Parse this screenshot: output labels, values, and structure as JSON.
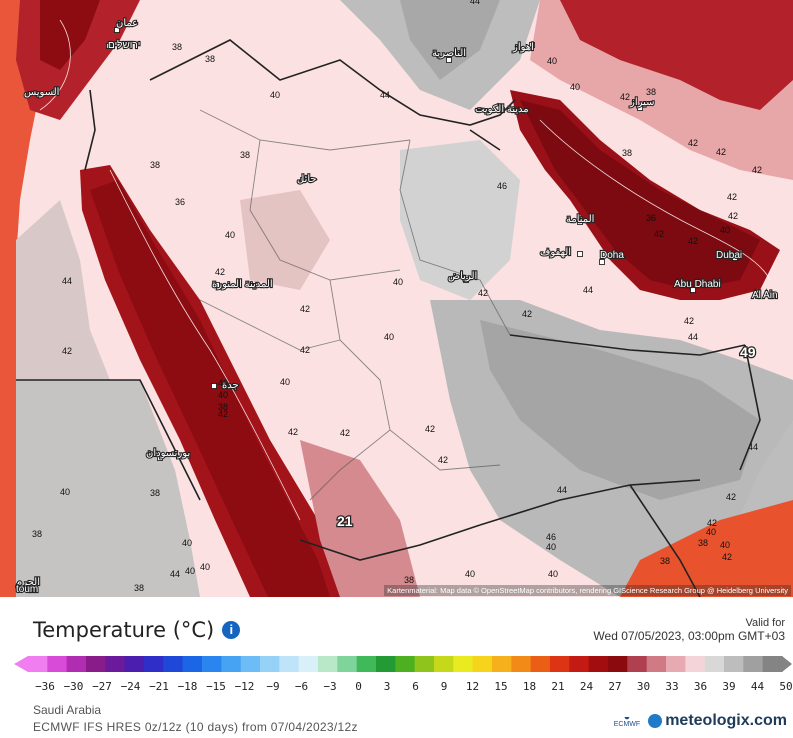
{
  "map": {
    "attribution": "Kartenmaterial: Map data © OpenStreetMap contributors, rendering GIScience Research Group @ Heidelberg University",
    "cities": [
      {
        "name": "عمان"
      },
      {
        "name": "ירושלים"
      },
      {
        "name": "السويس"
      },
      {
        "name": "الناصرية"
      },
      {
        "name": "اهواز"
      },
      {
        "name": "مدينة الكويت"
      },
      {
        "name": "حائل"
      },
      {
        "name": "المنامة"
      },
      {
        "name": "الهفوف"
      },
      {
        "name": "Doha"
      },
      {
        "name": "الرياض"
      },
      {
        "name": "Dubai"
      },
      {
        "name": "Abu Dhabi"
      },
      {
        "name": "Al Ain"
      },
      {
        "name": "المدينة المنورة"
      },
      {
        "name": "جدة"
      },
      {
        "name": "بورتسودان"
      },
      {
        "name": "سيراز"
      },
      {
        "name": "الحرم"
      },
      {
        "name": "toum"
      }
    ],
    "values": [
      "38",
      "38",
      "40",
      "38",
      "38",
      "36",
      "42",
      "40",
      "42",
      "42",
      "44",
      "44",
      "46",
      "40",
      "42",
      "40",
      "42",
      "42",
      "40",
      "40",
      "42",
      "42",
      "38",
      "42",
      "42",
      "42",
      "42",
      "38",
      "36",
      "42",
      "42",
      "40",
      "42",
      "44",
      "42",
      "44",
      "44",
      "42",
      "40",
      "40",
      "38",
      "44",
      "42",
      "38",
      "38",
      "40",
      "40",
      "42",
      "40",
      "46",
      "44",
      "42",
      "40",
      "38",
      "38",
      "44",
      "38",
      "40",
      "40",
      "40",
      "42",
      "42",
      "40",
      "40",
      "40",
      "38",
      "42"
    ],
    "maxima": [
      {
        "value": "49"
      },
      {
        "value": "21"
      }
    ]
  },
  "legend": {
    "title": "Temperature (°C)",
    "info_icon": "info-icon",
    "valid_label": "Valid for",
    "valid_time": "Wed 07/05/2023, 03:00pm GMT+03",
    "ticks": [
      "−36",
      "−30",
      "−27",
      "−24",
      "−21",
      "−18",
      "−15",
      "−12",
      "−9",
      "−6",
      "−3",
      "0",
      "3",
      "6",
      "9",
      "12",
      "15",
      "18",
      "21",
      "24",
      "27",
      "30",
      "33",
      "36",
      "39",
      "44",
      "50"
    ],
    "colors": [
      "#f07ef0",
      "#d84ad8",
      "#b02cb0",
      "#8a1c8a",
      "#6a1a9a",
      "#4c1eb0",
      "#2f2ec8",
      "#1f48d8",
      "#1a66e6",
      "#2a86ee",
      "#46a2f2",
      "#6ebcf6",
      "#96d2f8",
      "#bfe4fa",
      "#d9f0f8",
      "#b8e8c8",
      "#7fd49c",
      "#3fb95a",
      "#249a34",
      "#4cb020",
      "#8ec41c",
      "#c6d81a",
      "#eaea20",
      "#f6d41c",
      "#f6b01c",
      "#f28a18",
      "#ea5e16",
      "#dc3414",
      "#c41a14",
      "#a20e10",
      "#8a0a0e",
      "#b04050",
      "#d07a86",
      "#e8aab2",
      "#f4d4d8",
      "#d8d8d8",
      "#bdbdbd",
      "#a0a0a0",
      "#848484"
    ]
  },
  "footer": {
    "region": "Saudi Arabia",
    "model": "ECMWF IFS HRES 0z/12z (10 days) from 07/04/2023/12z",
    "ecmwf_label": "ECMWF",
    "brand": "meteologix.com"
  }
}
